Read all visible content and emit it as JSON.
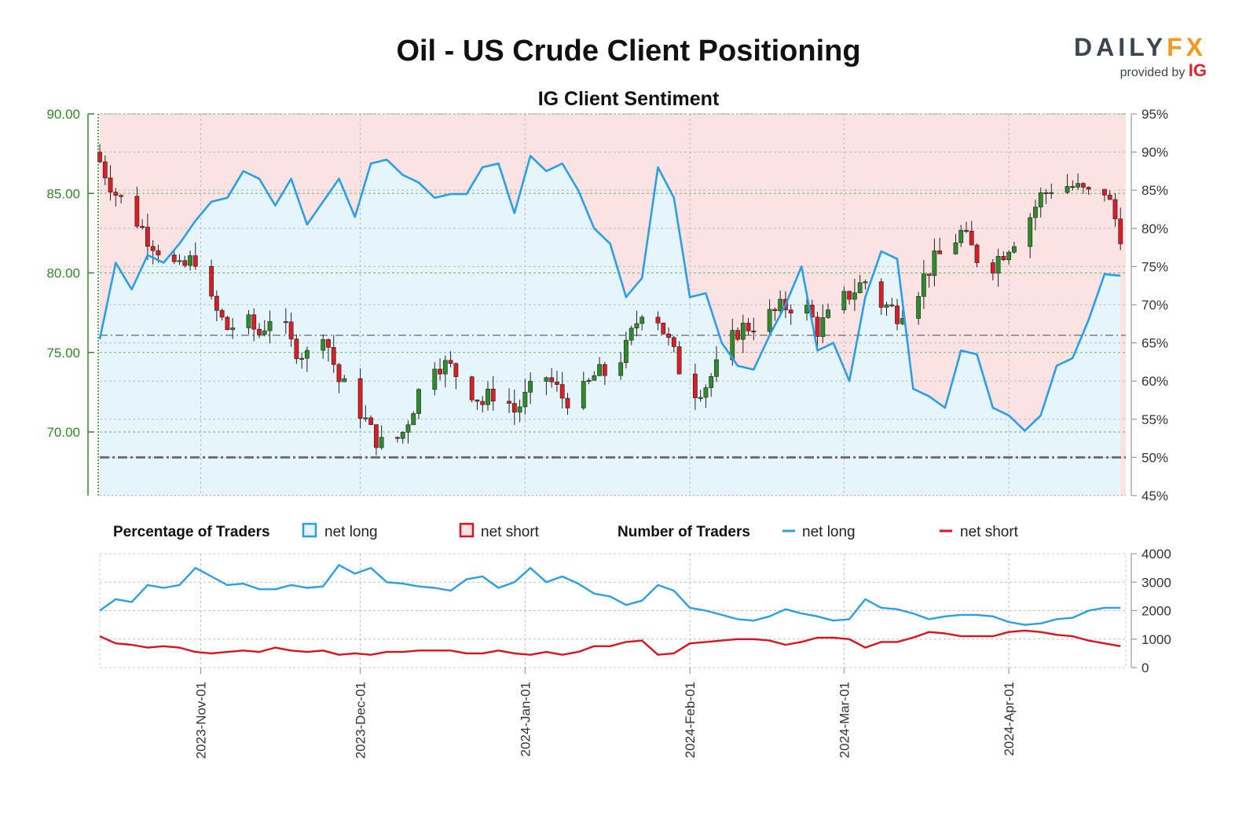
{
  "header": {
    "title": "Oil - US Crude Client Positioning",
    "subtitle": "IG Client Sentiment",
    "logo_brand_a": "DAILY",
    "logo_brand_b": "FX",
    "logo_provided": "provided by",
    "logo_ig": "IG"
  },
  "legend": {
    "pct_heading": "Percentage of Traders",
    "pct_long": "net long",
    "pct_short": "net short",
    "num_heading": "Number of Traders",
    "num_long": "net long",
    "num_short": "net short"
  },
  "colors": {
    "long": "#2b9fe6",
    "short": "#e0101c",
    "long_fill": "#e6f4fb",
    "short_fill": "#fbe3e4",
    "price_axis": "#2e8b22",
    "candle_up": "#2f8c2a",
    "candle_down": "#d91f26"
  },
  "chart_data": [
    {
      "type": "candlestick",
      "name": "price",
      "left_axis_ticks": [
        "90.00",
        "85.00",
        "80.00",
        "75.00",
        "70.00"
      ],
      "right_axis_ticks": [
        "95%",
        "90%",
        "85%",
        "80%",
        "75%",
        "70%",
        "65%",
        "60%",
        "55%",
        "50%",
        "45%"
      ],
      "ylim": [
        66.0,
        90.0
      ],
      "y2lim": [
        45,
        95
      ],
      "x_ticks": [
        "2023-Nov-01",
        "2023-Dec-01",
        "2024-Jan-01",
        "2024-Feb-01",
        "2024-Mar-01",
        "2024-Apr-01"
      ],
      "closes": [
        [
          0,
          87.0
        ],
        [
          3,
          85.0
        ],
        [
          6,
          83.8
        ],
        [
          9,
          82.3
        ],
        [
          12,
          81.2
        ],
        [
          15,
          80.1
        ],
        [
          18,
          81.0
        ],
        [
          21,
          78.0
        ],
        [
          24,
          76.5
        ],
        [
          27,
          77.0
        ],
        [
          30,
          76.2
        ],
        [
          33,
          77.8
        ],
        [
          36,
          75.5
        ],
        [
          39,
          74.8
        ],
        [
          42,
          76.5
        ],
        [
          45,
          73.2
        ],
        [
          48,
          72.0
        ],
        [
          51,
          70.0
        ],
        [
          54,
          68.8
        ],
        [
          57,
          70.0
        ],
        [
          60,
          72.5
        ],
        [
          63,
          74.5
        ],
        [
          66,
          74.0
        ],
        [
          69,
          73.0
        ],
        [
          72,
          71.8
        ],
        [
          75,
          72.8
        ],
        [
          78,
          71.3
        ],
        [
          81,
          72.5
        ],
        [
          84,
          73.5
        ],
        [
          87,
          72.2
        ],
        [
          90,
          72.0
        ],
        [
          93,
          73.5
        ],
        [
          96,
          73.8
        ],
        [
          99,
          75.2
        ],
        [
          102,
          77.8
        ],
        [
          105,
          77.2
        ],
        [
          108,
          74.8
        ],
        [
          111,
          72.5
        ],
        [
          114,
          73.0
        ],
        [
          117,
          74.5
        ],
        [
          120,
          76.4
        ],
        [
          123,
          76.8
        ],
        [
          126,
          77.3
        ],
        [
          129,
          77.9
        ],
        [
          132,
          78.2
        ],
        [
          135,
          76.5
        ],
        [
          138,
          77.5
        ],
        [
          141,
          78.7
        ],
        [
          144,
          79.5
        ],
        [
          147,
          78.1
        ],
        [
          150,
          77.5
        ],
        [
          153,
          78.5
        ],
        [
          156,
          80.3
        ],
        [
          159,
          81.5
        ],
        [
          162,
          82.5
        ],
        [
          165,
          81.0
        ],
        [
          168,
          80.6
        ],
        [
          171,
          81.8
        ],
        [
          174,
          83.0
        ],
        [
          177,
          84.8
        ],
        [
          180,
          85.7
        ],
        [
          183,
          85.4
        ],
        [
          186,
          84.9
        ],
        [
          189,
          85.2
        ],
        [
          192,
          82.5
        ]
      ],
      "net_long_pct": [
        [
          0,
          65.5
        ],
        [
          3,
          75.5
        ],
        [
          6,
          72.0
        ],
        [
          9,
          76.5
        ],
        [
          12,
          75.5
        ],
        [
          15,
          78.0
        ],
        [
          18,
          81.0
        ],
        [
          21,
          83.5
        ],
        [
          24,
          84.0
        ],
        [
          27,
          87.5
        ],
        [
          30,
          86.5
        ],
        [
          33,
          83.0
        ],
        [
          36,
          86.5
        ],
        [
          39,
          80.5
        ],
        [
          42,
          83.5
        ],
        [
          45,
          86.5
        ],
        [
          48,
          81.5
        ],
        [
          51,
          88.5
        ],
        [
          54,
          89.0
        ],
        [
          57,
          87.0
        ],
        [
          60,
          86.0
        ],
        [
          63,
          84.0
        ],
        [
          66,
          84.5
        ],
        [
          69,
          84.5
        ],
        [
          72,
          88.0
        ],
        [
          75,
          88.5
        ],
        [
          78,
          82.0
        ],
        [
          81,
          89.5
        ],
        [
          84,
          87.5
        ],
        [
          87,
          88.5
        ],
        [
          90,
          85.0
        ],
        [
          93,
          80.0
        ],
        [
          96,
          78.0
        ],
        [
          99,
          71.0
        ],
        [
          102,
          73.5
        ],
        [
          105,
          88.0
        ],
        [
          108,
          84.0
        ],
        [
          111,
          71.0
        ],
        [
          114,
          71.5
        ],
        [
          117,
          65.0
        ],
        [
          120,
          62.0
        ],
        [
          123,
          61.5
        ],
        [
          126,
          66.0
        ],
        [
          129,
          70.0
        ],
        [
          132,
          75.0
        ],
        [
          135,
          64.0
        ],
        [
          138,
          65.0
        ],
        [
          141,
          60.0
        ],
        [
          144,
          71.0
        ],
        [
          147,
          77.0
        ],
        [
          150,
          76.0
        ],
        [
          153,
          59.0
        ],
        [
          156,
          58.0
        ],
        [
          159,
          56.5
        ],
        [
          162,
          64.0
        ],
        [
          165,
          63.5
        ],
        [
          168,
          56.5
        ],
        [
          171,
          55.5
        ],
        [
          174,
          53.5
        ],
        [
          177,
          55.5
        ],
        [
          180,
          62.0
        ],
        [
          183,
          63.0
        ],
        [
          186,
          68.0
        ],
        [
          189,
          74.0
        ],
        [
          192,
          73.8
        ]
      ],
      "reference_line_pct": 66.0,
      "baseline_pct": 50.0
    },
    {
      "type": "line",
      "name": "number_of_traders",
      "ylim": [
        0,
        4000
      ],
      "y_ticks": [
        "4000",
        "3000",
        "2000",
        "1000",
        "0"
      ],
      "net_long": [
        [
          0,
          2000
        ],
        [
          3,
          2400
        ],
        [
          6,
          2300
        ],
        [
          9,
          2900
        ],
        [
          12,
          2800
        ],
        [
          15,
          2900
        ],
        [
          18,
          3500
        ],
        [
          21,
          3200
        ],
        [
          24,
          2900
        ],
        [
          27,
          2950
        ],
        [
          30,
          2750
        ],
        [
          33,
          2750
        ],
        [
          36,
          2900
        ],
        [
          39,
          2800
        ],
        [
          42,
          2850
        ],
        [
          45,
          3600
        ],
        [
          48,
          3300
        ],
        [
          51,
          3500
        ],
        [
          54,
          3000
        ],
        [
          57,
          2950
        ],
        [
          60,
          2850
        ],
        [
          63,
          2800
        ],
        [
          66,
          2700
        ],
        [
          69,
          3100
        ],
        [
          72,
          3200
        ],
        [
          75,
          2800
        ],
        [
          78,
          3000
        ],
        [
          81,
          3500
        ],
        [
          84,
          3000
        ],
        [
          87,
          3200
        ],
        [
          90,
          2950
        ],
        [
          93,
          2600
        ],
        [
          96,
          2500
        ],
        [
          99,
          2200
        ],
        [
          102,
          2350
        ],
        [
          105,
          2900
        ],
        [
          108,
          2700
        ],
        [
          111,
          2100
        ],
        [
          114,
          2000
        ],
        [
          117,
          1850
        ],
        [
          120,
          1700
        ],
        [
          123,
          1650
        ],
        [
          126,
          1800
        ],
        [
          129,
          2050
        ],
        [
          132,
          1900
        ],
        [
          135,
          1800
        ],
        [
          138,
          1650
        ],
        [
          141,
          1700
        ],
        [
          144,
          2400
        ],
        [
          147,
          2100
        ],
        [
          150,
          2050
        ],
        [
          153,
          1900
        ],
        [
          156,
          1700
        ],
        [
          159,
          1800
        ],
        [
          162,
          1850
        ],
        [
          165,
          1850
        ],
        [
          168,
          1800
        ],
        [
          171,
          1600
        ],
        [
          174,
          1500
        ],
        [
          177,
          1550
        ],
        [
          180,
          1700
        ],
        [
          183,
          1750
        ],
        [
          186,
          2000
        ],
        [
          189,
          2100
        ],
        [
          192,
          2100
        ]
      ],
      "net_short": [
        [
          0,
          1100
        ],
        [
          3,
          850
        ],
        [
          6,
          800
        ],
        [
          9,
          700
        ],
        [
          12,
          750
        ],
        [
          15,
          700
        ],
        [
          18,
          550
        ],
        [
          21,
          500
        ],
        [
          24,
          550
        ],
        [
          27,
          600
        ],
        [
          30,
          550
        ],
        [
          33,
          700
        ],
        [
          36,
          600
        ],
        [
          39,
          550
        ],
        [
          42,
          600
        ],
        [
          45,
          450
        ],
        [
          48,
          500
        ],
        [
          51,
          450
        ],
        [
          54,
          550
        ],
        [
          57,
          550
        ],
        [
          60,
          600
        ],
        [
          63,
          600
        ],
        [
          66,
          600
        ],
        [
          69,
          500
        ],
        [
          72,
          500
        ],
        [
          75,
          600
        ],
        [
          78,
          500
        ],
        [
          81,
          450
        ],
        [
          84,
          550
        ],
        [
          87,
          450
        ],
        [
          90,
          550
        ],
        [
          93,
          750
        ],
        [
          96,
          750
        ],
        [
          99,
          900
        ],
        [
          102,
          950
        ],
        [
          105,
          450
        ],
        [
          108,
          500
        ],
        [
          111,
          850
        ],
        [
          114,
          900
        ],
        [
          117,
          950
        ],
        [
          120,
          1000
        ],
        [
          123,
          1000
        ],
        [
          126,
          950
        ],
        [
          129,
          800
        ],
        [
          132,
          900
        ],
        [
          135,
          1050
        ],
        [
          138,
          1050
        ],
        [
          141,
          1000
        ],
        [
          144,
          700
        ],
        [
          147,
          900
        ],
        [
          150,
          900
        ],
        [
          153,
          1050
        ],
        [
          156,
          1250
        ],
        [
          159,
          1200
        ],
        [
          162,
          1100
        ],
        [
          165,
          1100
        ],
        [
          168,
          1100
        ],
        [
          171,
          1250
        ],
        [
          174,
          1300
        ],
        [
          177,
          1250
        ],
        [
          180,
          1150
        ],
        [
          183,
          1100
        ],
        [
          186,
          950
        ],
        [
          189,
          850
        ],
        [
          192,
          750
        ]
      ]
    }
  ]
}
